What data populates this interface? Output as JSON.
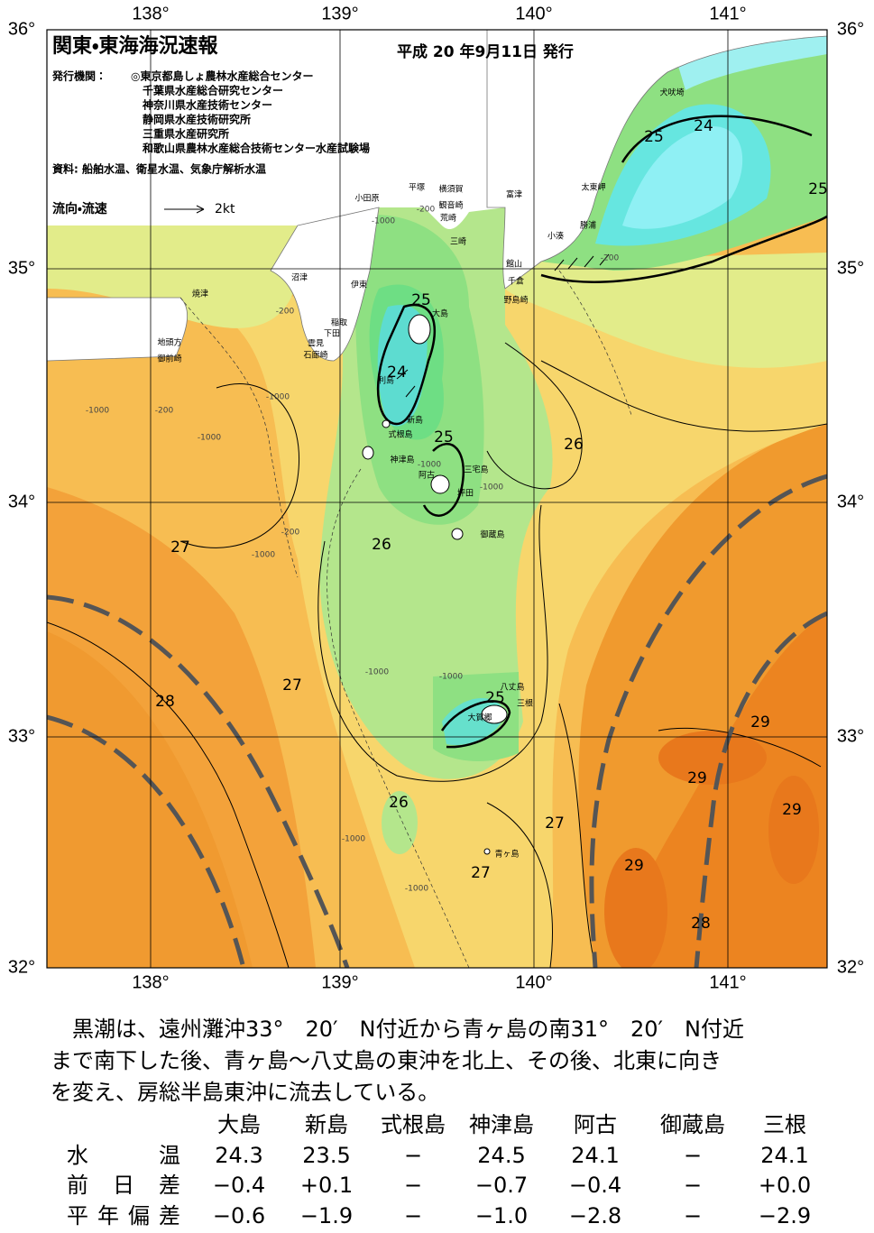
{
  "map": {
    "lon_labels": [
      "138°",
      "139°",
      "140°",
      "141°"
    ],
    "lat_labels": [
      "36°",
      "35°",
      "34°",
      "33°",
      "32°"
    ],
    "header": {
      "title": "関東・東海海況速報",
      "date": "平成 20 年9月11日 発行",
      "issuer_label": "発行機関：",
      "issuers": [
        "◎東京都島しょ農林水産総合センター",
        "千葉県水産総合研究センター",
        "神奈川県水産技術センター",
        "静岡県水産技術研究所",
        "三重県水産研究所",
        "和歌山県農林水産総合技術センター水産試験場"
      ],
      "sources": "資料: 船舶水温、衛星水温、気象庁解析水温",
      "current_legend": "流向・流速",
      "current_scale": "2kt"
    },
    "place_names": [
      "犬吠埼",
      "太東岬",
      "勝浦",
      "小湊",
      "館山",
      "千倉",
      "野島崎",
      "富津",
      "三崎",
      "荒崎",
      "観音崎",
      "横須賀",
      "平塚",
      "小田原",
      "伊東",
      "沼津",
      "焼津",
      "稲取",
      "下田",
      "雲見",
      "石廊崎",
      "地頭方",
      "御前崎",
      "大島",
      "利島",
      "新島",
      "式根島",
      "神津島",
      "三宅島",
      "阿古",
      "坪田",
      "御蔵島",
      "八丈島",
      "三根",
      "大賀郷",
      "青ヶ島"
    ],
    "contour_labels": [
      "25",
      "24",
      "25",
      "25",
      "24",
      "25",
      "26",
      "27",
      "26",
      "27",
      "28",
      "25",
      "29",
      "29",
      "29",
      "26",
      "27",
      "27",
      "29",
      "28"
    ],
    "depth_labels": [
      "-1000",
      "-200",
      "-200",
      "-1000",
      "-200",
      "-1000",
      "-1000",
      "-200",
      "-1000",
      "-1000",
      "-1000",
      "-1000",
      "-1000",
      "-1000",
      "-1000",
      "-200"
    ]
  },
  "summary": [
    "　黒潮は、遠州灘沖33°　20′　N付近から青ヶ島の南31°　20′　N付近",
    "まで南下した後、青ヶ島～八丈島の東沖を北上、その後、北東に向き",
    "を変え、房総半島東沖に流去している。"
  ],
  "table": {
    "columns": [
      "大島",
      "新島",
      "式根島",
      "神津島",
      "阿古",
      "御蔵島",
      "三根"
    ],
    "rows": [
      {
        "label": "水　　温",
        "values": [
          "24.3",
          "23.5",
          "−",
          "24.5",
          "24.1",
          "−",
          "24.1"
        ]
      },
      {
        "label": "前 日 差",
        "values": [
          "−0.4",
          "+0.1",
          "−",
          "−0.7",
          "−0.4",
          "−",
          "+0.0"
        ]
      },
      {
        "label": "平年偏差",
        "values": [
          "−0.6",
          "−1.9",
          "−",
          "−1.0",
          "−2.8",
          "−",
          "−2.9"
        ]
      }
    ]
  }
}
